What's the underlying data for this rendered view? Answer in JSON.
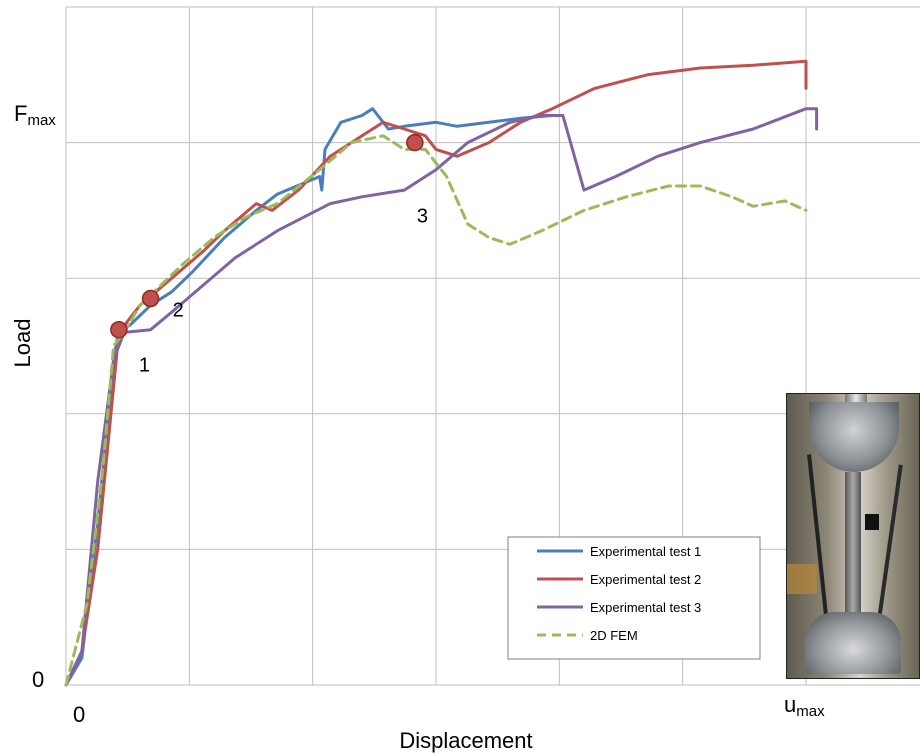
{
  "chart_data": {
    "type": "line",
    "title": "",
    "xlabel": "Displacement",
    "ylabel": "Load",
    "x_tick_labels": {
      "origin": "0",
      "end": "u_max",
      "end_main": "u",
      "end_sub": "max"
    },
    "y_tick_labels": {
      "origin": "0",
      "top": "F_max",
      "top_main": "F",
      "top_sub": "max"
    },
    "xlim": [
      0,
      7
    ],
    "ylim": [
      0,
      5
    ],
    "grid": true,
    "legend_position": "bottom-right",
    "series": [
      {
        "name": "Experimental test 1",
        "color": "#4a7ebb",
        "dash": false,
        "points": [
          [
            0,
            0
          ],
          [
            0.15,
            0.2
          ],
          [
            0.3,
            1.2
          ],
          [
            0.45,
            2.4
          ],
          [
            0.5,
            2.62
          ],
          [
            0.6,
            2.65
          ],
          [
            0.8,
            2.8
          ],
          [
            1.0,
            2.9
          ],
          [
            1.2,
            3.05
          ],
          [
            1.5,
            3.3
          ],
          [
            1.8,
            3.5
          ],
          [
            2.0,
            3.62
          ],
          [
            2.4,
            3.75
          ],
          [
            2.42,
            3.65
          ],
          [
            2.45,
            3.95
          ],
          [
            2.6,
            4.15
          ],
          [
            2.8,
            4.2
          ],
          [
            2.9,
            4.25
          ],
          [
            3.05,
            4.1
          ],
          [
            3.2,
            4.12
          ],
          [
            3.5,
            4.15
          ],
          [
            3.7,
            4.12
          ],
          [
            4.0,
            4.15
          ],
          [
            4.3,
            4.18
          ],
          [
            4.6,
            4.2
          ]
        ]
      },
      {
        "name": "Experimental test 2",
        "color": "#c0504d",
        "dash": false,
        "points": [
          [
            0,
            0
          ],
          [
            0.15,
            0.25
          ],
          [
            0.3,
            1.0
          ],
          [
            0.45,
            2.2
          ],
          [
            0.5,
            2.6
          ],
          [
            0.7,
            2.8
          ],
          [
            1.0,
            3.0
          ],
          [
            1.3,
            3.2
          ],
          [
            1.5,
            3.35
          ],
          [
            1.8,
            3.55
          ],
          [
            1.95,
            3.5
          ],
          [
            2.2,
            3.65
          ],
          [
            2.5,
            3.9
          ],
          [
            2.8,
            4.05
          ],
          [
            3.0,
            4.15
          ],
          [
            3.2,
            4.1
          ],
          [
            3.4,
            4.05
          ],
          [
            3.5,
            3.95
          ],
          [
            3.7,
            3.9
          ],
          [
            4.0,
            4.0
          ],
          [
            4.3,
            4.15
          ],
          [
            4.6,
            4.25
          ],
          [
            5.0,
            4.4
          ],
          [
            5.5,
            4.5
          ],
          [
            6.0,
            4.55
          ],
          [
            6.5,
            4.57
          ],
          [
            7.0,
            4.6
          ],
          [
            7.0,
            4.4
          ]
        ]
      },
      {
        "name": "Experimental test 3",
        "color": "#8064a2",
        "dash": false,
        "points": [
          [
            0,
            0
          ],
          [
            0.15,
            0.25
          ],
          [
            0.3,
            1.5
          ],
          [
            0.45,
            2.4
          ],
          [
            0.55,
            2.6
          ],
          [
            0.8,
            2.62
          ],
          [
            1.0,
            2.75
          ],
          [
            1.3,
            2.95
          ],
          [
            1.6,
            3.15
          ],
          [
            2.0,
            3.35
          ],
          [
            2.5,
            3.55
          ],
          [
            2.8,
            3.6
          ],
          [
            3.2,
            3.65
          ],
          [
            3.5,
            3.8
          ],
          [
            3.8,
            4.0
          ],
          [
            4.2,
            4.15
          ],
          [
            4.5,
            4.2
          ],
          [
            4.7,
            4.2
          ],
          [
            4.9,
            3.65
          ],
          [
            5.2,
            3.75
          ],
          [
            5.6,
            3.9
          ],
          [
            6.0,
            4.0
          ],
          [
            6.5,
            4.1
          ],
          [
            7.0,
            4.25
          ],
          [
            7.1,
            4.25
          ],
          [
            7.1,
            4.1
          ]
        ]
      },
      {
        "name": "2D FEM",
        "color": "#9bbb59",
        "dash": true,
        "points": [
          [
            0,
            0
          ],
          [
            0.2,
            0.6
          ],
          [
            0.35,
            1.6
          ],
          [
            0.45,
            2.5
          ],
          [
            0.55,
            2.6
          ],
          [
            0.7,
            2.8
          ],
          [
            0.9,
            2.95
          ],
          [
            1.1,
            3.1
          ],
          [
            1.4,
            3.3
          ],
          [
            1.7,
            3.45
          ],
          [
            2.0,
            3.55
          ],
          [
            2.4,
            3.8
          ],
          [
            2.7,
            4.0
          ],
          [
            3.0,
            4.05
          ],
          [
            3.2,
            3.95
          ],
          [
            3.4,
            3.95
          ],
          [
            3.6,
            3.75
          ],
          [
            3.8,
            3.4
          ],
          [
            4.0,
            3.3
          ],
          [
            4.2,
            3.25
          ],
          [
            4.5,
            3.35
          ],
          [
            4.9,
            3.5
          ],
          [
            5.3,
            3.6
          ],
          [
            5.7,
            3.68
          ],
          [
            6.0,
            3.68
          ],
          [
            6.3,
            3.6
          ],
          [
            6.5,
            3.53
          ],
          [
            6.8,
            3.57
          ],
          [
            7.0,
            3.5
          ]
        ]
      }
    ],
    "annotations": [
      {
        "label": "1",
        "x": 0.5,
        "y": 2.62,
        "marker_color": "#c0504d"
      },
      {
        "label": "2",
        "x": 0.8,
        "y": 2.85,
        "marker_color": "#c0504d"
      },
      {
        "label": "3",
        "x": 3.3,
        "y": 4.0,
        "marker_color": "#c0504d"
      }
    ]
  },
  "inset_photo": {
    "icon": "tensile-test-machine-photo"
  }
}
